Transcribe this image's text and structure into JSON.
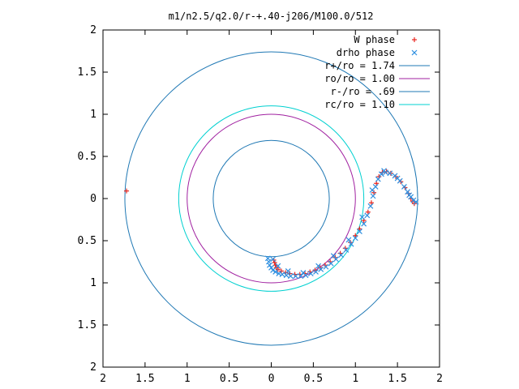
{
  "chart_data": {
    "type": "scatter",
    "title": "m1/n2.5/q2.0/r-+.40-j206/M100.0/512",
    "xlabel": "",
    "ylabel": "",
    "xlim": [
      -2,
      2
    ],
    "ylim": [
      -2,
      2
    ],
    "x_tick_labels": [
      "2",
      "1.5",
      "1",
      "0.5",
      "0",
      "0.5",
      "1",
      "1.5",
      "2"
    ],
    "y_tick_labels": [
      "2",
      "1.5",
      "1",
      "0.5",
      "0",
      "0.5",
      "1",
      "1.5",
      "2"
    ],
    "x_tick_values": [
      -2,
      -1.5,
      -1,
      -0.5,
      0,
      0.5,
      1,
      1.5,
      2
    ],
    "y_tick_values": [
      2,
      1.5,
      1,
      0.5,
      0,
      -0.5,
      -1,
      -1.5,
      -2
    ],
    "grid": false,
    "legend_position": "top-right",
    "circles": [
      {
        "name": "r+/ro = 1.74",
        "radius": 1.74,
        "color": "#1f78b4"
      },
      {
        "name": "ro/ro = 1.00",
        "radius": 1.0,
        "color": "#a020a0"
      },
      {
        "name": "r-/ro = .69",
        "radius": 0.69,
        "color": "#1f78b4"
      },
      {
        "name": "rc/ro = 1.10",
        "radius": 1.1,
        "color": "#00d0d0"
      }
    ],
    "series": [
      {
        "name": "W phase",
        "marker": "+",
        "color": "#e8261f",
        "points": [
          [
            -1.72,
            0.09
          ],
          [
            0.03,
            -0.73
          ],
          [
            0.04,
            -0.76
          ],
          [
            0.05,
            -0.79
          ],
          [
            0.06,
            -0.82
          ],
          [
            0.08,
            -0.84
          ],
          [
            0.12,
            -0.86
          ],
          [
            0.17,
            -0.88
          ],
          [
            0.22,
            -0.89
          ],
          [
            0.28,
            -0.9
          ],
          [
            0.34,
            -0.9
          ],
          [
            0.4,
            -0.89
          ],
          [
            0.46,
            -0.87
          ],
          [
            0.52,
            -0.85
          ],
          [
            0.58,
            -0.82
          ],
          [
            0.64,
            -0.79
          ],
          [
            0.7,
            -0.75
          ],
          [
            0.76,
            -0.7
          ],
          [
            0.82,
            -0.65
          ],
          [
            0.88,
            -0.59
          ],
          [
            0.94,
            -0.52
          ],
          [
            1.0,
            -0.44
          ],
          [
            1.05,
            -0.36
          ],
          [
            1.1,
            -0.26
          ],
          [
            1.15,
            -0.16
          ],
          [
            1.19,
            -0.05
          ],
          [
            1.22,
            0.07
          ],
          [
            1.25,
            0.18
          ],
          [
            1.28,
            0.26
          ],
          [
            1.32,
            0.31
          ],
          [
            1.37,
            0.32
          ],
          [
            1.42,
            0.3
          ],
          [
            1.48,
            0.26
          ],
          [
            1.54,
            0.2
          ],
          [
            1.59,
            0.13
          ],
          [
            1.63,
            0.06
          ],
          [
            1.66,
            0.0
          ],
          [
            1.68,
            -0.03
          ],
          [
            1.7,
            -0.06
          ]
        ]
      },
      {
        "name": "drho phase",
        "marker": "x",
        "color": "#2e8fe0",
        "points": [
          [
            -0.04,
            -0.71
          ],
          [
            -0.03,
            -0.75
          ],
          [
            -0.02,
            -0.79
          ],
          [
            0.0,
            -0.82
          ],
          [
            0.02,
            -0.85
          ],
          [
            0.05,
            -0.87
          ],
          [
            0.09,
            -0.89
          ],
          [
            0.13,
            -0.9
          ],
          [
            0.18,
            -0.91
          ],
          [
            0.23,
            -0.92
          ],
          [
            0.29,
            -0.92
          ],
          [
            0.35,
            -0.92
          ],
          [
            0.41,
            -0.91
          ],
          [
            0.47,
            -0.89
          ],
          [
            0.53,
            -0.87
          ],
          [
            0.59,
            -0.84
          ],
          [
            0.65,
            -0.81
          ],
          [
            0.71,
            -0.77
          ],
          [
            0.77,
            -0.72
          ],
          [
            0.83,
            -0.67
          ],
          [
            0.89,
            -0.61
          ],
          [
            0.95,
            -0.54
          ],
          [
            1.0,
            -0.47
          ],
          [
            1.05,
            -0.39
          ],
          [
            1.1,
            -0.3
          ],
          [
            1.14,
            -0.2
          ],
          [
            1.18,
            -0.09
          ],
          [
            1.21,
            0.03
          ],
          [
            1.24,
            0.14
          ],
          [
            1.27,
            0.23
          ],
          [
            1.31,
            0.29
          ],
          [
            1.36,
            0.31
          ],
          [
            1.41,
            0.3
          ],
          [
            1.47,
            0.27
          ],
          [
            1.53,
            0.21
          ],
          [
            1.58,
            0.14
          ],
          [
            1.62,
            0.08
          ],
          [
            1.66,
            0.02
          ],
          [
            1.69,
            -0.02
          ],
          [
            1.72,
            -0.04
          ],
          [
            0.02,
            -0.72
          ],
          [
            0.08,
            -0.8
          ],
          [
            0.2,
            -0.86
          ],
          [
            0.38,
            -0.88
          ],
          [
            0.56,
            -0.8
          ],
          [
            0.74,
            -0.68
          ],
          [
            0.92,
            -0.49
          ],
          [
            1.08,
            -0.22
          ],
          [
            1.2,
            0.1
          ],
          [
            1.34,
            0.33
          ],
          [
            1.5,
            0.24
          ],
          [
            1.64,
            0.04
          ]
        ]
      }
    ]
  }
}
